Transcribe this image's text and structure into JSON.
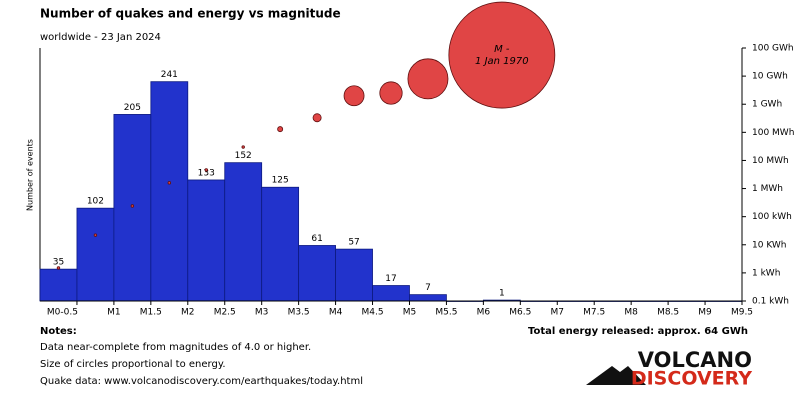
{
  "chart_data": {
    "type": "histogram",
    "title": "Number of quakes and energy vs magnitude",
    "subtitle": "worldwide - 23 Jan 2024",
    "ylabel": "Number of events",
    "bins": [
      0,
      0.5,
      1,
      1.5,
      2,
      2.5,
      3,
      3.5,
      4,
      4.5,
      5,
      5.5,
      6,
      6.5,
      7,
      7.5,
      8,
      8.5,
      9,
      9.5
    ],
    "values": [
      35,
      102,
      205,
      241,
      133,
      152,
      125,
      61,
      57,
      17,
      7,
      0,
      1,
      0,
      0,
      0,
      0,
      0,
      0
    ],
    "color": "#2233cc",
    "xlim": [
      0,
      9.5
    ],
    "xticks": [
      {
        "value": 0.5,
        "label": "M0-0.5"
      },
      {
        "value": 1,
        "label": "M1"
      },
      {
        "value": 1.5,
        "label": "M1.5"
      },
      {
        "value": 2,
        "label": "M2"
      },
      {
        "value": 2.5,
        "label": "M2.5"
      },
      {
        "value": 3,
        "label": "M3"
      },
      {
        "value": 3.5,
        "label": "M3.5"
      },
      {
        "value": 4,
        "label": "M4"
      },
      {
        "value": 4.5,
        "label": "M4.5"
      },
      {
        "value": 5,
        "label": "M5"
      },
      {
        "value": 5.5,
        "label": "M5.5"
      },
      {
        "value": 6,
        "label": "M6"
      },
      {
        "value": 6.5,
        "label": "M6.5"
      },
      {
        "value": 7,
        "label": "M7"
      },
      {
        "value": 7.5,
        "label": "M7.5"
      },
      {
        "value": 8,
        "label": "M8"
      },
      {
        "value": 8.5,
        "label": "M8.5"
      },
      {
        "value": 9,
        "label": "M9"
      },
      {
        "value": 9.5,
        "label": "M9.5"
      }
    ],
    "ylim": [
      0,
      278
    ],
    "energy": {
      "axis": "y2",
      "color": "#e04545",
      "values": [
        1500,
        22000,
        240000,
        1600000,
        4600000,
        30000000,
        130000000,
        330000000,
        2000000000,
        2500000000,
        8000000000,
        null,
        56000000000,
        null,
        null,
        null,
        null,
        null,
        null
      ]
    },
    "y2lim": [
      100,
      100000000000
    ],
    "y2log": true,
    "y2ticks": [
      {
        "value": 100,
        "label": "0.1 kWh"
      },
      {
        "value": 1000,
        "label": "1 kWh"
      },
      {
        "value": 10000,
        "label": "10 KWh"
      },
      {
        "value": 100000,
        "label": "100 kWh"
      },
      {
        "value": 1000000,
        "label": "1 MWh"
      },
      {
        "value": 10000000,
        "label": "10 MWh"
      },
      {
        "value": 100000000,
        "label": "100 MWh"
      },
      {
        "value": 1000000000,
        "label": "1 GWh"
      },
      {
        "value": 10000000000,
        "label": "10 GWh"
      },
      {
        "value": 100000000000,
        "label": "100 GWh"
      }
    ],
    "annotation": [
      "M -",
      "1 Jan 1970"
    ],
    "total": "Total energy released: approx. 64 GWh",
    "notes_title": "Notes:",
    "notes": [
      "Data near-complete from magnitudes of 4.0 or higher.",
      "Size of circles proportional to energy.",
      "Quake data: www.volcanodiscovery.com/earthquakes/today.html"
    ],
    "logo": [
      "VOLCANO",
      "DISCOVERY"
    ]
  }
}
